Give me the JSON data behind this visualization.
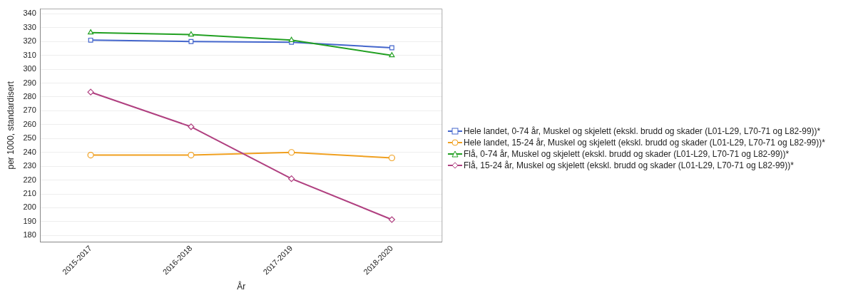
{
  "chart_data": {
    "type": "line",
    "xlabel": "År",
    "ylabel": "per 1000, standardisert",
    "categories": [
      "2015-2017",
      "2016-2018",
      "2017-2019",
      "2018-2020"
    ],
    "series": [
      {
        "name": "Hele landet, 0-74 år, Muskel og skjelett (ekskl. brudd og skader (L01-L29, L70-71 og L82-99))*",
        "color": "#4466cc",
        "marker": "square",
        "values": [
          321,
          320,
          319.5,
          315.5
        ]
      },
      {
        "name": "Hele landet, 15-24 år, Muskel og skjelett (ekskl. brudd og skader (L01-L29, L70-71 og L82-99))*",
        "color": "#f0a020",
        "marker": "circle",
        "values": [
          238,
          238,
          240,
          236
        ]
      },
      {
        "name": "Flå, 0-74 år, Muskel og skjelett (ekskl. brudd og skader (L01-L29, L70-71 og L82-99))*",
        "color": "#22a022",
        "marker": "triangle",
        "values": [
          326.5,
          325,
          321,
          310
        ]
      },
      {
        "name": "Flå, 15-24 år, Muskel og skjelett (ekskl. brudd og skader (L01-L29, L70-71 og L82-99))*",
        "color": "#b04080",
        "marker": "diamond",
        "values": [
          283.5,
          258.5,
          221,
          191.5
        ]
      }
    ],
    "ylim": [
      175.5,
      343.5
    ],
    "yticks": [
      180,
      190,
      200,
      210,
      220,
      230,
      240,
      250,
      260,
      270,
      280,
      290,
      300,
      310,
      320,
      330,
      340
    ],
    "grid": "y",
    "legend": "right",
    "line_style": "solid"
  }
}
